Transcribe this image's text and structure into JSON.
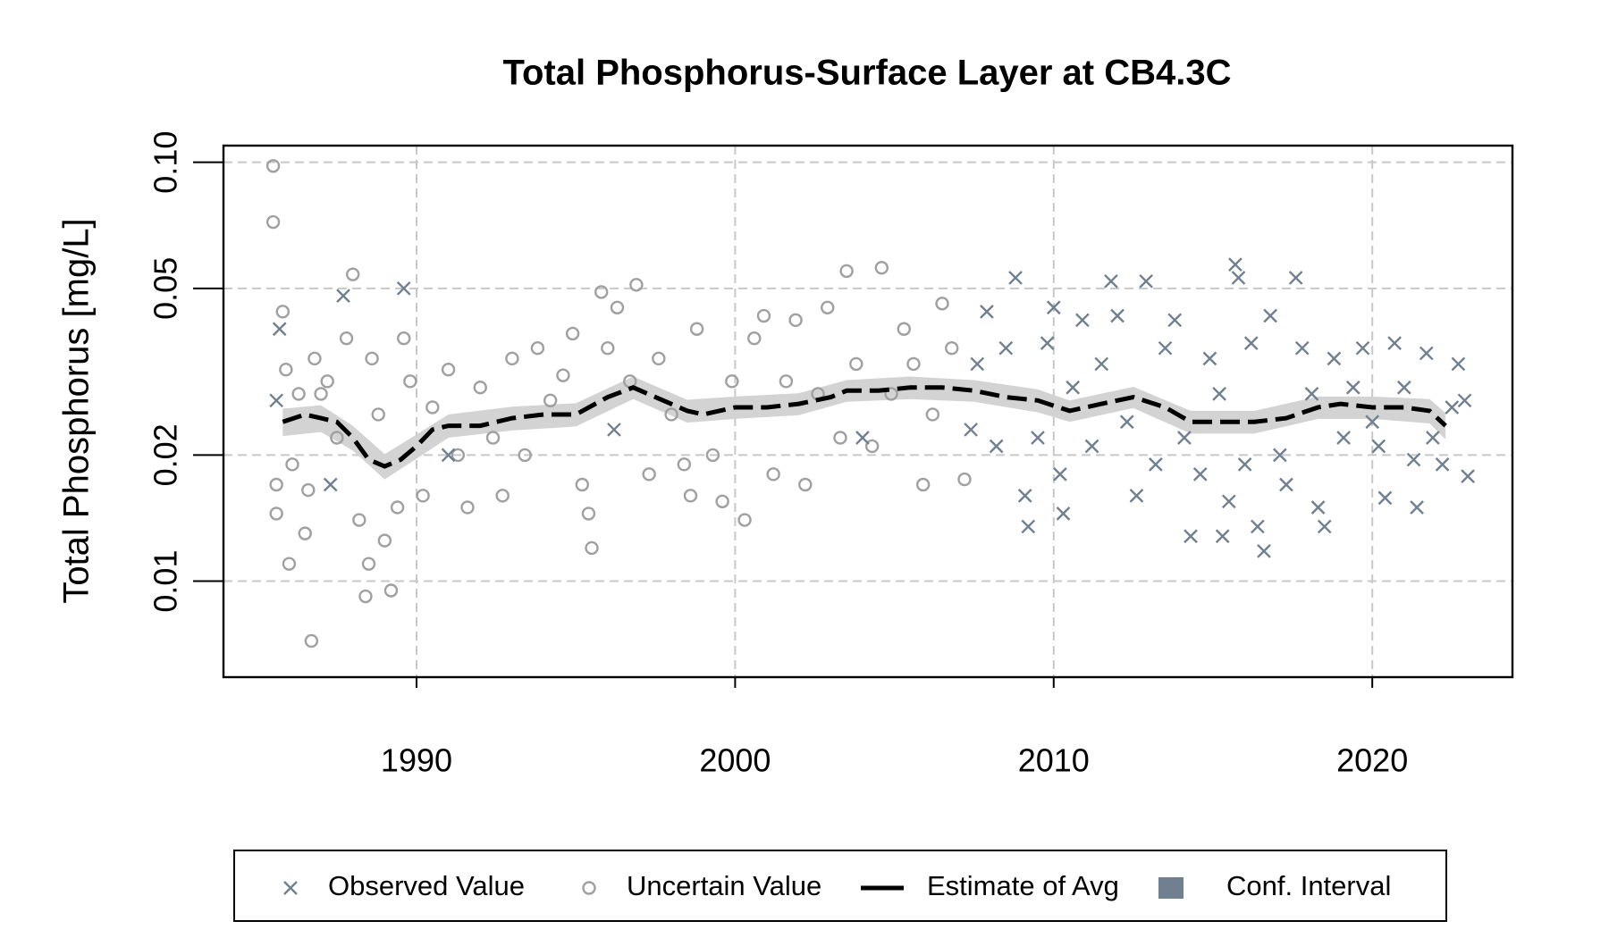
{
  "chart_data": {
    "type": "scatter",
    "title": "Total Phosphorus-Surface Layer at CB4.3C",
    "y_label": "Total Phosphorus [mg/L]",
    "log_y": true,
    "grid": true,
    "legend": "bottom",
    "xlim": [
      1983.94,
      2024.4
    ],
    "xticks": [
      1990,
      2000,
      2010,
      2020
    ],
    "ylim": [
      0.0059,
      0.1096
    ],
    "yticks": [
      0.01,
      0.02,
      0.05,
      {
        "value": 0.1,
        "label": "0.10"
      }
    ],
    "series": [
      {
        "name": "Observed Value",
        "style": "x-marker",
        "color": "#708090",
        "x": [
          1985.6,
          1985.7,
          1987.3,
          1987.7,
          1989.6,
          1991.0,
          1996.2,
          2004.0,
          2007.4,
          2007.6,
          2007.9,
          2008.2,
          2008.5,
          2008.8,
          2009.1,
          2009.2,
          2009.5,
          2009.8,
          2010.0,
          2010.2,
          2010.3,
          2010.6,
          2010.9,
          2011.2,
          2011.5,
          2011.8,
          2012.0,
          2012.3,
          2012.6,
          2012.9,
          2013.2,
          2013.5,
          2013.8,
          2014.1,
          2014.3,
          2014.6,
          2014.9,
          2015.2,
          2015.3,
          2015.5,
          2015.7,
          2015.8,
          2016.0,
          2016.2,
          2016.4,
          2016.6,
          2016.8,
          2017.1,
          2017.3,
          2017.6,
          2017.8,
          2018.1,
          2018.3,
          2018.5,
          2018.8,
          2019.1,
          2019.4,
          2019.7,
          2020.0,
          2020.2,
          2020.4,
          2020.7,
          2021.0,
          2021.3,
          2021.4,
          2021.7,
          2021.9,
          2022.2,
          2022.5,
          2022.7,
          2022.9,
          2023.0
        ],
        "values": [
          0.027,
          0.04,
          0.017,
          0.048,
          0.05,
          0.02,
          0.023,
          0.022,
          0.023,
          0.033,
          0.044,
          0.021,
          0.036,
          0.053,
          0.016,
          0.0135,
          0.022,
          0.037,
          0.045,
          0.018,
          0.0145,
          0.029,
          0.042,
          0.021,
          0.033,
          0.052,
          0.043,
          0.024,
          0.016,
          0.052,
          0.019,
          0.036,
          0.042,
          0.022,
          0.0128,
          0.018,
          0.034,
          0.028,
          0.0128,
          0.0155,
          0.057,
          0.053,
          0.019,
          0.037,
          0.0135,
          0.0118,
          0.043,
          0.02,
          0.017,
          0.053,
          0.036,
          0.028,
          0.015,
          0.0135,
          0.034,
          0.022,
          0.029,
          0.036,
          0.024,
          0.021,
          0.0158,
          0.037,
          0.029,
          0.0195,
          0.015,
          0.035,
          0.022,
          0.019,
          0.026,
          0.033,
          0.027,
          0.0178
        ]
      },
      {
        "name": "Uncertain Value",
        "style": "circle",
        "color": "#a0a0a0",
        "x": [
          1985.5,
          1985.5,
          1985.6,
          1985.6,
          1985.8,
          1985.9,
          1986.0,
          1986.1,
          1986.3,
          1986.5,
          1986.6,
          1986.7,
          1986.8,
          1987.0,
          1987.2,
          1987.5,
          1987.8,
          1988.0,
          1988.2,
          1988.4,
          1988.5,
          1988.6,
          1988.8,
          1989.0,
          1989.2,
          1989.4,
          1989.6,
          1989.8,
          1990.2,
          1990.5,
          1991.0,
          1991.3,
          1991.6,
          1992.0,
          1992.4,
          1992.7,
          1993.0,
          1993.4,
          1993.8,
          1994.2,
          1994.6,
          1994.9,
          1995.2,
          1995.4,
          1995.5,
          1995.8,
          1996.0,
          1996.3,
          1996.7,
          1996.9,
          1997.3,
          1997.6,
          1998.0,
          1998.4,
          1998.6,
          1998.8,
          1999.3,
          1999.6,
          1999.9,
          2000.3,
          2000.6,
          2000.9,
          2001.2,
          2001.6,
          2001.9,
          2002.2,
          2002.6,
          2002.9,
          2003.3,
          2003.5,
          2003.8,
          2004.3,
          2004.6,
          2004.9,
          2005.3,
          2005.6,
          2005.9,
          2006.2,
          2006.5,
          2006.8,
          2007.2
        ],
        "values": [
          0.098,
          0.072,
          0.017,
          0.0145,
          0.044,
          0.032,
          0.011,
          0.019,
          0.028,
          0.013,
          0.0165,
          0.0072,
          0.034,
          0.028,
          0.03,
          0.022,
          0.038,
          0.054,
          0.014,
          0.0092,
          0.011,
          0.034,
          0.025,
          0.0125,
          0.0095,
          0.015,
          0.038,
          0.03,
          0.016,
          0.026,
          0.032,
          0.02,
          0.015,
          0.029,
          0.022,
          0.016,
          0.034,
          0.02,
          0.036,
          0.027,
          0.031,
          0.039,
          0.017,
          0.0145,
          0.012,
          0.049,
          0.036,
          0.045,
          0.03,
          0.051,
          0.018,
          0.034,
          0.025,
          0.019,
          0.016,
          0.04,
          0.02,
          0.0155,
          0.03,
          0.014,
          0.038,
          0.043,
          0.018,
          0.03,
          0.042,
          0.017,
          0.028,
          0.045,
          0.022,
          0.055,
          0.033,
          0.021,
          0.056,
          0.028,
          0.04,
          0.033,
          0.017,
          0.025,
          0.046,
          0.036,
          0.0175
        ]
      },
      {
        "name": "Estimate of Avg",
        "style": "dashed-line",
        "color": "#000000",
        "x": [
          1985.8,
          1986.5,
          1987.0,
          1987.5,
          1988.0,
          1988.5,
          1989.0,
          1989.5,
          1990.0,
          1990.5,
          1991.0,
          1992.0,
          1993.0,
          1994.0,
          1995.0,
          1996.0,
          1996.8,
          1997.5,
          1998.5,
          1999.0,
          2000.0,
          2001.0,
          2002.0,
          2003.0,
          2003.5,
          2004.5,
          2005.5,
          2006.5,
          2007.5,
          2008.5,
          2009.5,
          2010.5,
          2011.5,
          2012.5,
          2013.5,
          2014.3,
          2015.3,
          2016.3,
          2017.3,
          2018.3,
          2019.0,
          2020.0,
          2021.0,
          2021.8,
          2022.3
        ],
        "values": [
          0.024,
          0.025,
          0.0245,
          0.024,
          0.022,
          0.0195,
          0.0188,
          0.0195,
          0.021,
          0.023,
          0.0235,
          0.0235,
          0.0245,
          0.025,
          0.025,
          0.0275,
          0.029,
          0.0275,
          0.0255,
          0.025,
          0.026,
          0.026,
          0.0265,
          0.0275,
          0.0285,
          0.0285,
          0.029,
          0.029,
          0.0285,
          0.0275,
          0.027,
          0.0255,
          0.0265,
          0.0275,
          0.026,
          0.024,
          0.024,
          0.024,
          0.0245,
          0.026,
          0.0265,
          0.026,
          0.026,
          0.0255,
          0.0235
        ]
      },
      {
        "name": "Conf. Interval",
        "style": "band",
        "color": "#d3d3d3",
        "legend_color": "#708090",
        "x": [
          1985.8,
          1987.0,
          1988.0,
          1989.0,
          1990.0,
          1991.0,
          1993.0,
          1995.0,
          1996.8,
          1998.5,
          2000.0,
          2002.0,
          2003.5,
          2005.5,
          2007.5,
          2009.5,
          2010.5,
          2012.5,
          2014.3,
          2016.3,
          2018.3,
          2020.0,
          2021.8,
          2022.3
        ],
        "lower": [
          0.0222,
          0.0227,
          0.0205,
          0.0175,
          0.0196,
          0.022,
          0.0229,
          0.0234,
          0.0272,
          0.0239,
          0.0244,
          0.0249,
          0.0268,
          0.0272,
          0.0268,
          0.0253,
          0.024,
          0.0259,
          0.0225,
          0.0225,
          0.0244,
          0.0244,
          0.0238,
          0.0218
        ],
        "upper": [
          0.0258,
          0.0263,
          0.0235,
          0.0201,
          0.0224,
          0.025,
          0.0261,
          0.0266,
          0.0308,
          0.0271,
          0.0276,
          0.0281,
          0.0302,
          0.0308,
          0.0302,
          0.0287,
          0.027,
          0.0291,
          0.0255,
          0.0255,
          0.0276,
          0.0276,
          0.0272,
          0.0252
        ]
      }
    ]
  }
}
